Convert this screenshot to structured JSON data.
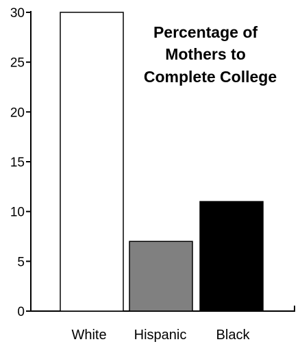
{
  "chart_data": {
    "type": "bar",
    "title_lines": [
      "Percentage of",
      "Mothers to",
      "Complete College"
    ],
    "categories": [
      "White",
      "Hispanic",
      "Black"
    ],
    "values": [
      30,
      7,
      11
    ],
    "colors": [
      "#ffffff",
      "#808080",
      "#000000"
    ],
    "ylim": [
      0,
      30
    ],
    "yticks": [
      0,
      5,
      10,
      15,
      20,
      25,
      30
    ],
    "xlabel": "",
    "ylabel": "",
    "grid": false,
    "legend": "none"
  }
}
